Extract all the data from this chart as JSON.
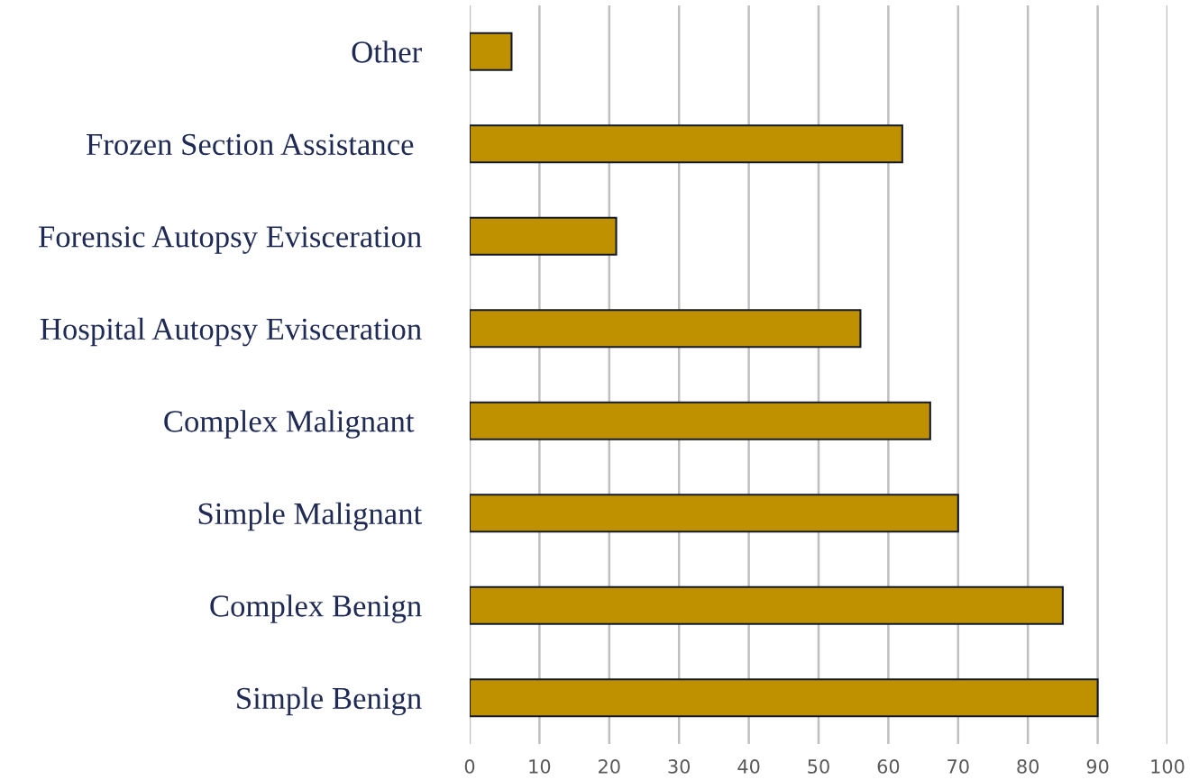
{
  "chart_data": {
    "type": "bar",
    "orientation": "horizontal",
    "categories": [
      "Other",
      "Frozen Section Assistance ",
      "Forensic Autopsy Evisceration",
      "Hospital Autopsy Evisceration",
      "Complex Malignant ",
      "Simple Malignant",
      "Complex Benign",
      "Simple Benign"
    ],
    "values": [
      6,
      62,
      21,
      56,
      66,
      70,
      85,
      90
    ],
    "color": "#bf9000",
    "xlim": [
      0,
      100
    ],
    "xticks": [
      0,
      10,
      20,
      30,
      40,
      50,
      60,
      70,
      80,
      90,
      100
    ],
    "grid": "x"
  }
}
